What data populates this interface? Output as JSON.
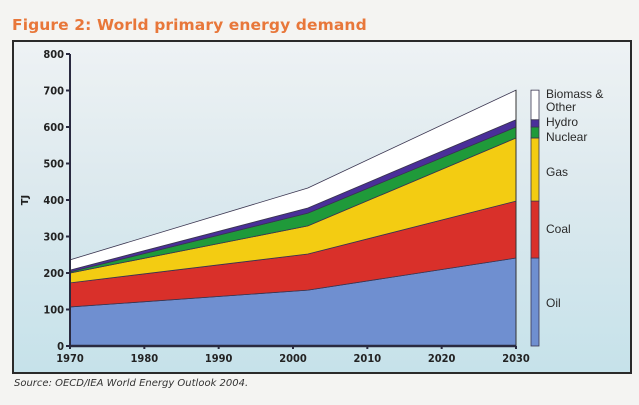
{
  "page": {
    "title": "Figure 2: World primary energy demand",
    "source": "Source: OECD/IEA World Energy Outlook 2004."
  },
  "chart_data": {
    "type": "area",
    "stacked": true,
    "title": "Figure 2: World primary energy demand",
    "xlabel": "",
    "ylabel": "TJ",
    "x": [
      1970,
      2002,
      2030
    ],
    "xlim": [
      1970,
      2030
    ],
    "ylim": [
      0,
      800
    ],
    "xticks": [
      "1970",
      "1980",
      "1990",
      "2000",
      "2010",
      "2020",
      "2030"
    ],
    "yticks": [
      "0",
      "100",
      "200",
      "300",
      "400",
      "500",
      "600",
      "700",
      "800"
    ],
    "legend_position": "right",
    "series": [
      {
        "name": "Oil",
        "color": "#6f8fd0",
        "values": [
          107,
          153,
          241
        ]
      },
      {
        "name": "Coal",
        "color": "#d9302a",
        "values": [
          66,
          99,
          156
        ]
      },
      {
        "name": "Gas",
        "color": "#f3cc12",
        "values": [
          27,
          77,
          173
        ]
      },
      {
        "name": "Nuclear",
        "color": "#1f9a3a",
        "values": [
          3,
          35,
          30
        ]
      },
      {
        "name": "Hydro",
        "color": "#4a2f9a",
        "values": [
          5,
          14,
          20
        ]
      },
      {
        "name": "Biomass & Other",
        "color": "#ffffff",
        "values": [
          28,
          55,
          81
        ]
      }
    ],
    "legend": [
      "Biomass &\nOther",
      "Hydro",
      "Nuclear",
      "Gas",
      "Coal",
      "Oil"
    ]
  }
}
